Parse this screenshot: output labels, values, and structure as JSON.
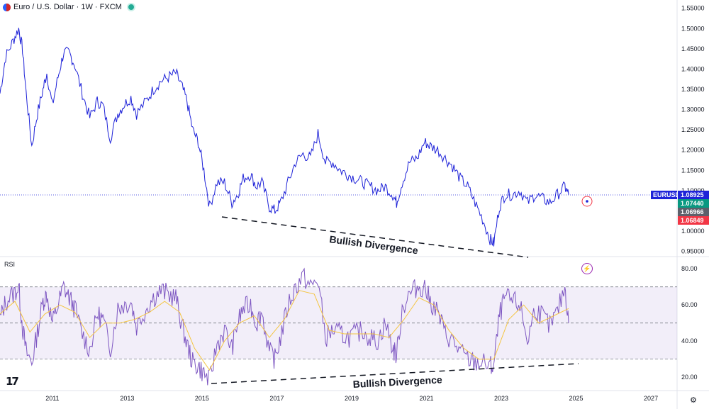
{
  "header": {
    "symbol_title": "Euro / U.S. Dollar · 1W · FXCM",
    "flag_icon": "eu-us-flag-icon",
    "status_icon": "market-open-dot-icon",
    "status_color": "#22ab94"
  },
  "price_axis": {
    "ticks": [
      "1.55000",
      "1.50000",
      "1.45000",
      "1.40000",
      "1.35000",
      "1.30000",
      "1.25000",
      "1.20000",
      "1.15000",
      "1.10000",
      "1.05000",
      "1.00000",
      "0.95000"
    ]
  },
  "rsi_axis": {
    "ticks": [
      "80.00",
      "60.00",
      "40.00",
      "20.00"
    ]
  },
  "time_axis": {
    "ticks": [
      "2011",
      "2013",
      "2015",
      "2017",
      "2019",
      "2021",
      "2023",
      "2025",
      "2027"
    ]
  },
  "price_tags": [
    {
      "text": "EURUSD",
      "color": "#1e22d8"
    },
    {
      "text": "1.08925",
      "color": "#1e22d8"
    },
    {
      "text": "1.07440",
      "color": "#089981"
    },
    {
      "text": "1.06966",
      "color": "#5d606b"
    },
    {
      "text": "1.06849",
      "color": "#f23645"
    }
  ],
  "annotations": {
    "price_divergence": "Bullish Divergence",
    "rsi_divergence": "Bullish Divergence"
  },
  "rsi_pane": {
    "label": "RSI"
  },
  "branding": {
    "logo": "17"
  },
  "icons": {
    "settings": "settings-icon",
    "alert": "lightning-icon"
  },
  "chart_data": [
    {
      "type": "line",
      "title": "Euro / U.S. Dollar · 1W · FXCM",
      "ylim": [
        0.93,
        1.56
      ],
      "xlim": [
        2009.6,
        2027.7
      ],
      "last_price": 1.08925,
      "series": [
        {
          "name": "EURUSD",
          "color": "#1e22d8",
          "x": [
            2009.6,
            2009.75,
            2009.95,
            2010.1,
            2010.2,
            2010.3,
            2010.45,
            2010.6,
            2010.75,
            2010.85,
            2011.0,
            2011.15,
            2011.3,
            2011.45,
            2011.6,
            2011.8,
            2012.0,
            2012.2,
            2012.35,
            2012.55,
            2012.75,
            2012.9,
            2013.1,
            2013.25,
            2013.5,
            2013.7,
            2013.9,
            2014.1,
            2014.3,
            2014.45,
            2014.6,
            2014.75,
            2014.9,
            2015.05,
            2015.2,
            2015.4,
            2015.6,
            2015.8,
            2015.95,
            2016.1,
            2016.3,
            2016.45,
            2016.6,
            2016.8,
            2016.95,
            2017.1,
            2017.3,
            2017.5,
            2017.7,
            2017.9,
            2018.1,
            2018.3,
            2018.5,
            2018.7,
            2018.9,
            2019.1,
            2019.3,
            2019.5,
            2019.7,
            2019.9,
            2020.1,
            2020.2,
            2020.35,
            2020.55,
            2020.75,
            2020.95,
            2021.1,
            2021.3,
            2021.5,
            2021.7,
            2021.9,
            2022.1,
            2022.3,
            2022.5,
            2022.7,
            2022.8,
            2022.95,
            2023.1,
            2023.3,
            2023.5,
            2023.7,
            2023.9,
            2024.1,
            2024.3,
            2024.5,
            2024.7,
            2024.8
          ],
          "values": [
            1.34,
            1.43,
            1.47,
            1.5,
            1.45,
            1.34,
            1.21,
            1.29,
            1.35,
            1.39,
            1.31,
            1.38,
            1.44,
            1.44,
            1.41,
            1.34,
            1.28,
            1.32,
            1.31,
            1.23,
            1.29,
            1.31,
            1.33,
            1.29,
            1.32,
            1.35,
            1.37,
            1.38,
            1.39,
            1.36,
            1.32,
            1.25,
            1.22,
            1.15,
            1.06,
            1.12,
            1.12,
            1.07,
            1.09,
            1.13,
            1.14,
            1.11,
            1.12,
            1.06,
            1.05,
            1.07,
            1.12,
            1.17,
            1.19,
            1.18,
            1.24,
            1.17,
            1.17,
            1.15,
            1.14,
            1.13,
            1.12,
            1.11,
            1.1,
            1.11,
            1.09,
            1.07,
            1.12,
            1.17,
            1.18,
            1.22,
            1.21,
            1.2,
            1.18,
            1.16,
            1.13,
            1.11,
            1.07,
            1.03,
            0.98,
            0.97,
            1.06,
            1.09,
            1.09,
            1.1,
            1.07,
            1.09,
            1.08,
            1.07,
            1.09,
            1.11,
            1.09
          ]
        }
      ]
    },
    {
      "type": "line",
      "title": "RSI",
      "ylim": [
        13,
        84
      ],
      "levels": [
        70,
        50,
        30
      ],
      "series": [
        {
          "name": "RSI",
          "color": "#7e57c2",
          "x": [
            2009.6,
            2009.75,
            2009.95,
            2010.1,
            2010.2,
            2010.3,
            2010.45,
            2010.6,
            2010.75,
            2010.85,
            2011.0,
            2011.15,
            2011.3,
            2011.45,
            2011.6,
            2011.8,
            2012.0,
            2012.2,
            2012.35,
            2012.55,
            2012.75,
            2012.9,
            2013.1,
            2013.25,
            2013.5,
            2013.7,
            2013.9,
            2014.1,
            2014.3,
            2014.45,
            2014.6,
            2014.75,
            2014.9,
            2015.05,
            2015.2,
            2015.4,
            2015.6,
            2015.8,
            2015.95,
            2016.1,
            2016.3,
            2016.45,
            2016.6,
            2016.8,
            2016.95,
            2017.1,
            2017.3,
            2017.5,
            2017.7,
            2017.9,
            2018.1,
            2018.3,
            2018.5,
            2018.7,
            2018.9,
            2019.1,
            2019.3,
            2019.5,
            2019.7,
            2019.9,
            2020.1,
            2020.2,
            2020.35,
            2020.55,
            2020.75,
            2020.95,
            2021.1,
            2021.3,
            2021.5,
            2021.7,
            2021.9,
            2022.1,
            2022.3,
            2022.5,
            2022.7,
            2022.8,
            2022.95,
            2023.1,
            2023.3,
            2023.5,
            2023.7,
            2023.9,
            2024.1,
            2024.3,
            2024.5,
            2024.7,
            2024.8
          ],
          "values": [
            52,
            62,
            66,
            70,
            48,
            34,
            28,
            45,
            62,
            66,
            50,
            60,
            70,
            64,
            58,
            44,
            35,
            55,
            52,
            36,
            58,
            60,
            62,
            48,
            58,
            64,
            68,
            66,
            64,
            50,
            38,
            28,
            26,
            22,
            18,
            38,
            46,
            36,
            50,
            58,
            60,
            50,
            56,
            34,
            30,
            42,
            60,
            70,
            76,
            70,
            74,
            42,
            46,
            44,
            42,
            44,
            46,
            42,
            40,
            50,
            36,
            32,
            58,
            66,
            70,
            70,
            62,
            56,
            44,
            40,
            34,
            30,
            28,
            28,
            26,
            26,
            54,
            64,
            62,
            60,
            40,
            58,
            54,
            48,
            56,
            70,
            50
          ]
        },
        {
          "name": "RSI-based MA",
          "color": "#f4c542",
          "x": [
            2009.6,
            2010.0,
            2010.4,
            2010.8,
            2011.2,
            2011.6,
            2012.0,
            2012.4,
            2012.8,
            2013.2,
            2013.6,
            2014.0,
            2014.4,
            2014.8,
            2015.2,
            2015.6,
            2016.0,
            2016.4,
            2016.8,
            2017.2,
            2017.6,
            2018.0,
            2018.4,
            2018.8,
            2019.2,
            2019.6,
            2020.0,
            2020.4,
            2020.8,
            2021.2,
            2021.6,
            2022.0,
            2022.4,
            2022.8,
            2023.2,
            2023.6,
            2024.0,
            2024.4,
            2024.8
          ],
          "values": [
            55,
            62,
            45,
            55,
            60,
            56,
            42,
            50,
            50,
            52,
            56,
            62,
            56,
            36,
            24,
            40,
            50,
            54,
            42,
            52,
            68,
            66,
            46,
            44,
            44,
            44,
            42,
            52,
            64,
            60,
            46,
            36,
            30,
            30,
            52,
            60,
            50,
            54,
            58
          ]
        }
      ]
    }
  ]
}
